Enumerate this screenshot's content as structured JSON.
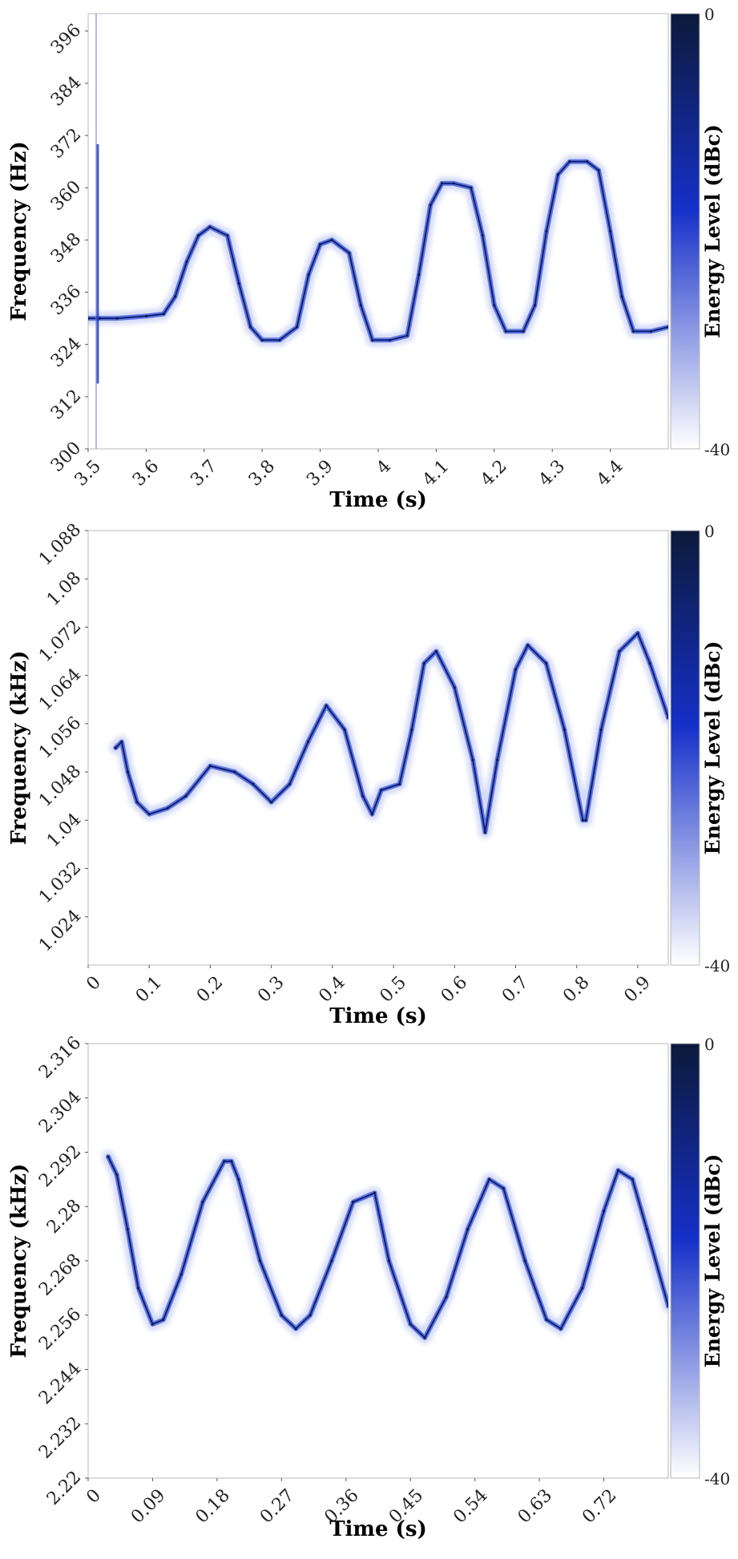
{
  "colorbar": {
    "label": "Energy Level (dBc)",
    "max_label": "0",
    "min_label": "-40",
    "colors": [
      "#ffffff",
      "#1530c8",
      "#0c1a3a"
    ]
  },
  "chart_data": [
    {
      "type": "heatmap",
      "title": "",
      "xlabel": "Time (s)",
      "ylabel": "Frequency (Hz)",
      "xlim": [
        3.5,
        4.5
      ],
      "ylim": [
        300,
        400
      ],
      "x_ticks": [
        "3.5",
        "3.6",
        "3.7",
        "3.8",
        "3.9",
        "4",
        "4.1",
        "4.2",
        "4.3",
        "4.4"
      ],
      "x_tick_values": [
        3.5,
        3.6,
        3.7,
        3.8,
        3.9,
        4.0,
        4.1,
        4.2,
        4.3,
        4.4
      ],
      "y_ticks": [
        "300",
        "312",
        "324",
        "336",
        "348",
        "360",
        "372",
        "384",
        "396"
      ],
      "y_tick_values": [
        300,
        312,
        324,
        336,
        348,
        360,
        372,
        384,
        396
      ],
      "colorbar_range": [
        -40,
        0
      ],
      "series": [
        {
          "x": [
            3.5,
            3.52,
            3.55,
            3.6,
            3.63,
            3.65,
            3.67,
            3.69,
            3.71,
            3.74,
            3.76,
            3.78,
            3.8,
            3.83,
            3.86,
            3.88,
            3.9,
            3.92,
            3.95,
            3.97,
            3.99,
            4.02,
            4.05,
            4.07,
            4.09,
            4.11,
            4.13,
            4.16,
            4.18,
            4.2,
            4.22,
            4.25,
            4.27,
            4.29,
            4.31,
            4.33,
            4.36,
            4.38,
            4.4,
            4.42,
            4.44,
            4.47,
            4.5
          ],
          "y": [
            330,
            330,
            330,
            330.5,
            331,
            335,
            343,
            349,
            351,
            349,
            338,
            328,
            325,
            325,
            328,
            340,
            347,
            348,
            345,
            333,
            325,
            325,
            326,
            340,
            356,
            361,
            361,
            360,
            349,
            333,
            327,
            327,
            333,
            350,
            363,
            366,
            366,
            364,
            350,
            335,
            327,
            327,
            328
          ]
        }
      ]
    },
    {
      "type": "heatmap",
      "title": "",
      "xlabel": "Time (s)",
      "ylabel": "Frequency (kHz)",
      "xlim": [
        0,
        0.95
      ],
      "ylim": [
        1.016,
        1.088
      ],
      "x_ticks": [
        "0",
        "0.1",
        "0.2",
        "0.3",
        "0.4",
        "0.5",
        "0.6",
        "0.7",
        "0.8",
        "0.9"
      ],
      "x_tick_values": [
        0,
        0.1,
        0.2,
        0.3,
        0.4,
        0.5,
        0.6,
        0.7,
        0.8,
        0.9
      ],
      "y_ticks": [
        "1.024",
        "1.032",
        "1.04",
        "1.048",
        "1.056",
        "1.064",
        "1.072",
        "1.08",
        "1.088"
      ],
      "y_tick_values": [
        1.024,
        1.032,
        1.04,
        1.048,
        1.056,
        1.064,
        1.072,
        1.08,
        1.088
      ],
      "colorbar_range": [
        -40,
        0
      ],
      "series": [
        {
          "x": [
            0.045,
            0.055,
            0.065,
            0.08,
            0.1,
            0.13,
            0.16,
            0.2,
            0.24,
            0.27,
            0.3,
            0.33,
            0.36,
            0.39,
            0.42,
            0.45,
            0.465,
            0.48,
            0.51,
            0.53,
            0.55,
            0.57,
            0.6,
            0.63,
            0.65,
            0.67,
            0.7,
            0.72,
            0.75,
            0.78,
            0.81,
            0.815,
            0.84,
            0.87,
            0.9,
            0.92,
            0.95
          ],
          "y": [
            1.052,
            1.053,
            1.048,
            1.043,
            1.041,
            1.042,
            1.044,
            1.049,
            1.048,
            1.046,
            1.043,
            1.046,
            1.053,
            1.059,
            1.055,
            1.044,
            1.041,
            1.045,
            1.046,
            1.055,
            1.066,
            1.068,
            1.062,
            1.05,
            1.038,
            1.05,
            1.065,
            1.069,
            1.066,
            1.055,
            1.04,
            1.04,
            1.055,
            1.068,
            1.071,
            1.066,
            1.057
          ]
        }
      ]
    },
    {
      "type": "heatmap",
      "title": "",
      "xlabel": "Time (s)",
      "ylabel": "Frequency (kHz)",
      "xlim": [
        0,
        0.81
      ],
      "ylim": [
        2.22,
        2.316
      ],
      "x_ticks": [
        "0",
        "0.09",
        "0.18",
        "0.27",
        "0.36",
        "0.45",
        "0.54",
        "0.63",
        "0.72"
      ],
      "x_tick_values": [
        0,
        0.09,
        0.18,
        0.27,
        0.36,
        0.45,
        0.54,
        0.63,
        0.72
      ],
      "y_ticks": [
        "2.22",
        "2.232",
        "2.244",
        "2.256",
        "2.268",
        "2.28",
        "2.292",
        "2.304",
        "2.316"
      ],
      "y_tick_values": [
        2.22,
        2.232,
        2.244,
        2.256,
        2.268,
        2.28,
        2.292,
        2.304,
        2.316
      ],
      "colorbar_range": [
        -40,
        0
      ],
      "series": [
        {
          "x": [
            0.028,
            0.04,
            0.055,
            0.07,
            0.09,
            0.105,
            0.13,
            0.16,
            0.19,
            0.2,
            0.21,
            0.24,
            0.27,
            0.29,
            0.31,
            0.34,
            0.37,
            0.4,
            0.42,
            0.45,
            0.47,
            0.5,
            0.53,
            0.56,
            0.58,
            0.61,
            0.64,
            0.66,
            0.69,
            0.72,
            0.74,
            0.76,
            0.78,
            0.81
          ],
          "y": [
            2.291,
            2.287,
            2.275,
            2.262,
            2.254,
            2.255,
            2.265,
            2.281,
            2.29,
            2.29,
            2.286,
            2.268,
            2.256,
            2.253,
            2.256,
            2.268,
            2.281,
            2.283,
            2.268,
            2.254,
            2.251,
            2.26,
            2.275,
            2.286,
            2.284,
            2.268,
            2.255,
            2.253,
            2.262,
            2.279,
            2.288,
            2.286,
            2.275,
            2.258
          ]
        }
      ]
    }
  ]
}
